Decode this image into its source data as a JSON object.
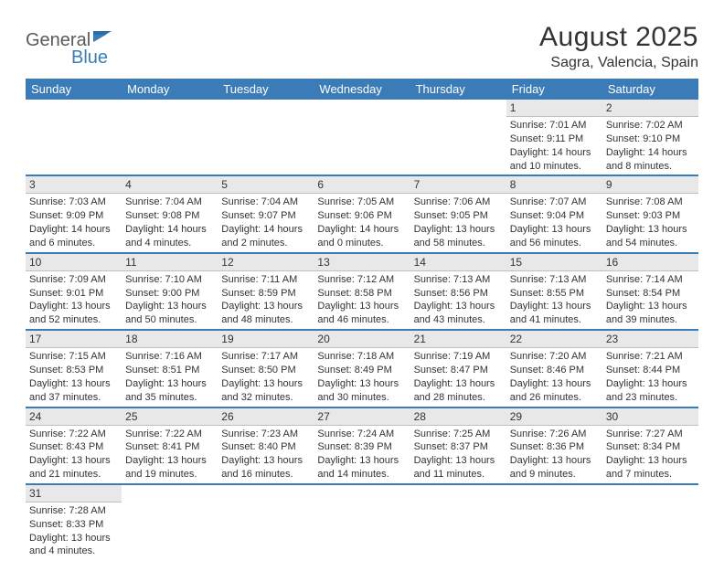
{
  "logo": {
    "part1": "General",
    "part2": "Blue"
  },
  "title": "August 2025",
  "location": "Sagra, Valencia, Spain",
  "colors": {
    "header_bg": "#3b7cb8",
    "header_text": "#ffffff",
    "daynum_bg": "#e8e8e8",
    "cell_border": "#3b7cb8",
    "text": "#333333",
    "logo_gray": "#5a5a5a",
    "logo_blue": "#3b7cb8"
  },
  "weekdays": [
    "Sunday",
    "Monday",
    "Tuesday",
    "Wednesday",
    "Thursday",
    "Friday",
    "Saturday"
  ],
  "weeks": [
    [
      null,
      null,
      null,
      null,
      null,
      {
        "n": "1",
        "sr": "Sunrise: 7:01 AM",
        "ss": "Sunset: 9:11 PM",
        "dl": "Daylight: 14 hours and 10 minutes."
      },
      {
        "n": "2",
        "sr": "Sunrise: 7:02 AM",
        "ss": "Sunset: 9:10 PM",
        "dl": "Daylight: 14 hours and 8 minutes."
      }
    ],
    [
      {
        "n": "3",
        "sr": "Sunrise: 7:03 AM",
        "ss": "Sunset: 9:09 PM",
        "dl": "Daylight: 14 hours and 6 minutes."
      },
      {
        "n": "4",
        "sr": "Sunrise: 7:04 AM",
        "ss": "Sunset: 9:08 PM",
        "dl": "Daylight: 14 hours and 4 minutes."
      },
      {
        "n": "5",
        "sr": "Sunrise: 7:04 AM",
        "ss": "Sunset: 9:07 PM",
        "dl": "Daylight: 14 hours and 2 minutes."
      },
      {
        "n": "6",
        "sr": "Sunrise: 7:05 AM",
        "ss": "Sunset: 9:06 PM",
        "dl": "Daylight: 14 hours and 0 minutes."
      },
      {
        "n": "7",
        "sr": "Sunrise: 7:06 AM",
        "ss": "Sunset: 9:05 PM",
        "dl": "Daylight: 13 hours and 58 minutes."
      },
      {
        "n": "8",
        "sr": "Sunrise: 7:07 AM",
        "ss": "Sunset: 9:04 PM",
        "dl": "Daylight: 13 hours and 56 minutes."
      },
      {
        "n": "9",
        "sr": "Sunrise: 7:08 AM",
        "ss": "Sunset: 9:03 PM",
        "dl": "Daylight: 13 hours and 54 minutes."
      }
    ],
    [
      {
        "n": "10",
        "sr": "Sunrise: 7:09 AM",
        "ss": "Sunset: 9:01 PM",
        "dl": "Daylight: 13 hours and 52 minutes."
      },
      {
        "n": "11",
        "sr": "Sunrise: 7:10 AM",
        "ss": "Sunset: 9:00 PM",
        "dl": "Daylight: 13 hours and 50 minutes."
      },
      {
        "n": "12",
        "sr": "Sunrise: 7:11 AM",
        "ss": "Sunset: 8:59 PM",
        "dl": "Daylight: 13 hours and 48 minutes."
      },
      {
        "n": "13",
        "sr": "Sunrise: 7:12 AM",
        "ss": "Sunset: 8:58 PM",
        "dl": "Daylight: 13 hours and 46 minutes."
      },
      {
        "n": "14",
        "sr": "Sunrise: 7:13 AM",
        "ss": "Sunset: 8:56 PM",
        "dl": "Daylight: 13 hours and 43 minutes."
      },
      {
        "n": "15",
        "sr": "Sunrise: 7:13 AM",
        "ss": "Sunset: 8:55 PM",
        "dl": "Daylight: 13 hours and 41 minutes."
      },
      {
        "n": "16",
        "sr": "Sunrise: 7:14 AM",
        "ss": "Sunset: 8:54 PM",
        "dl": "Daylight: 13 hours and 39 minutes."
      }
    ],
    [
      {
        "n": "17",
        "sr": "Sunrise: 7:15 AM",
        "ss": "Sunset: 8:53 PM",
        "dl": "Daylight: 13 hours and 37 minutes."
      },
      {
        "n": "18",
        "sr": "Sunrise: 7:16 AM",
        "ss": "Sunset: 8:51 PM",
        "dl": "Daylight: 13 hours and 35 minutes."
      },
      {
        "n": "19",
        "sr": "Sunrise: 7:17 AM",
        "ss": "Sunset: 8:50 PM",
        "dl": "Daylight: 13 hours and 32 minutes."
      },
      {
        "n": "20",
        "sr": "Sunrise: 7:18 AM",
        "ss": "Sunset: 8:49 PM",
        "dl": "Daylight: 13 hours and 30 minutes."
      },
      {
        "n": "21",
        "sr": "Sunrise: 7:19 AM",
        "ss": "Sunset: 8:47 PM",
        "dl": "Daylight: 13 hours and 28 minutes."
      },
      {
        "n": "22",
        "sr": "Sunrise: 7:20 AM",
        "ss": "Sunset: 8:46 PM",
        "dl": "Daylight: 13 hours and 26 minutes."
      },
      {
        "n": "23",
        "sr": "Sunrise: 7:21 AM",
        "ss": "Sunset: 8:44 PM",
        "dl": "Daylight: 13 hours and 23 minutes."
      }
    ],
    [
      {
        "n": "24",
        "sr": "Sunrise: 7:22 AM",
        "ss": "Sunset: 8:43 PM",
        "dl": "Daylight: 13 hours and 21 minutes."
      },
      {
        "n": "25",
        "sr": "Sunrise: 7:22 AM",
        "ss": "Sunset: 8:41 PM",
        "dl": "Daylight: 13 hours and 19 minutes."
      },
      {
        "n": "26",
        "sr": "Sunrise: 7:23 AM",
        "ss": "Sunset: 8:40 PM",
        "dl": "Daylight: 13 hours and 16 minutes."
      },
      {
        "n": "27",
        "sr": "Sunrise: 7:24 AM",
        "ss": "Sunset: 8:39 PM",
        "dl": "Daylight: 13 hours and 14 minutes."
      },
      {
        "n": "28",
        "sr": "Sunrise: 7:25 AM",
        "ss": "Sunset: 8:37 PM",
        "dl": "Daylight: 13 hours and 11 minutes."
      },
      {
        "n": "29",
        "sr": "Sunrise: 7:26 AM",
        "ss": "Sunset: 8:36 PM",
        "dl": "Daylight: 13 hours and 9 minutes."
      },
      {
        "n": "30",
        "sr": "Sunrise: 7:27 AM",
        "ss": "Sunset: 8:34 PM",
        "dl": "Daylight: 13 hours and 7 minutes."
      }
    ],
    [
      {
        "n": "31",
        "sr": "Sunrise: 7:28 AM",
        "ss": "Sunset: 8:33 PM",
        "dl": "Daylight: 13 hours and 4 minutes."
      },
      null,
      null,
      null,
      null,
      null,
      null
    ]
  ]
}
